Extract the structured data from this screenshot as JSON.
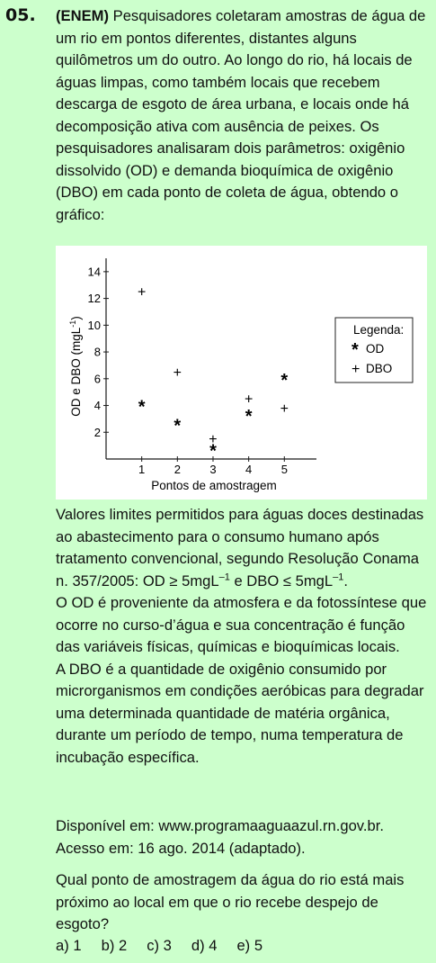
{
  "question": {
    "number": "05.",
    "source_tag": "(ENEM)",
    "intro": "Pesquisadores coletaram amostras de água de um rio em pontos diferentes, distantes alguns quilômetros um do outro. Ao longo do rio, há locais de águas limpas, como também locais que recebem descarga de esgoto de área urbana, e locais onde há decomposição ativa com ausência de peixes. Os pesquisadores analisaram dois parâmetros: oxigênio dissolvido (OD) e demanda bioquímica de oxigênio (DBO) em cada ponto de coleta de água, obtendo o gráfico:",
    "limits_a": "Valores limites permitidos para águas doces destinadas ao abastecimento para o consumo humano após tratamento convencional, segundo Resolução Conama n. 357/2005: OD ≥ 5mgL",
    "limits_sup1": "–1",
    "limits_b": " e DBO ≤ 5mgL",
    "limits_sup2": "–1",
    "limits_c": ".",
    "od_text": "O OD é proveniente da atmosfera e da fotossíntese que ocorre no curso-d’água e sua concentração é função das variáveis físicas, químicas e bioquímicas locais.",
    "dbo_text": "A DBO é a quantidade de oxigênio consumido por microrganismos em condições aeróbicas para degradar uma determinada quantidade de matéria orgânica, durante um período de tempo, numa temperatura de incubação específica.",
    "source_line1": "Disponível em: www.programaaguaazul.rn.gov.br.",
    "source_line2": "Acesso em: 16 ago. 2014 (adaptado).",
    "prompt": "Qual ponto de amostragem da água do rio está mais próximo ao local em que o rio recebe despejo de esgoto?",
    "options": [
      "a) 1",
      "b) 2",
      "c) 3",
      "d) 4",
      "e) 5"
    ]
  },
  "chart_data": {
    "type": "scatter",
    "xlabel": "Pontos de amostragem",
    "ylabel": "OD e DBO (mgL",
    "ylabel_sup": "-1",
    "ylabel_close": ")",
    "xticks": [
      "1",
      "2",
      "3",
      "4",
      "5"
    ],
    "yticks": [
      "2",
      "4",
      "6",
      "8",
      "10",
      "12",
      "14"
    ],
    "xlim": [
      0,
      5.9
    ],
    "ylim": [
      0,
      15
    ],
    "legend_title": "Legenda:",
    "series": [
      {
        "name": "OD",
        "marker": "*",
        "x": [
          1,
          2,
          3,
          4,
          5
        ],
        "y": [
          4.0,
          2.6,
          0.7,
          3.3,
          6.0
        ]
      },
      {
        "name": "DBO",
        "marker": "+",
        "x": [
          1,
          2,
          3,
          4,
          5
        ],
        "y": [
          12.5,
          6.5,
          1.5,
          4.5,
          3.8
        ]
      }
    ]
  }
}
